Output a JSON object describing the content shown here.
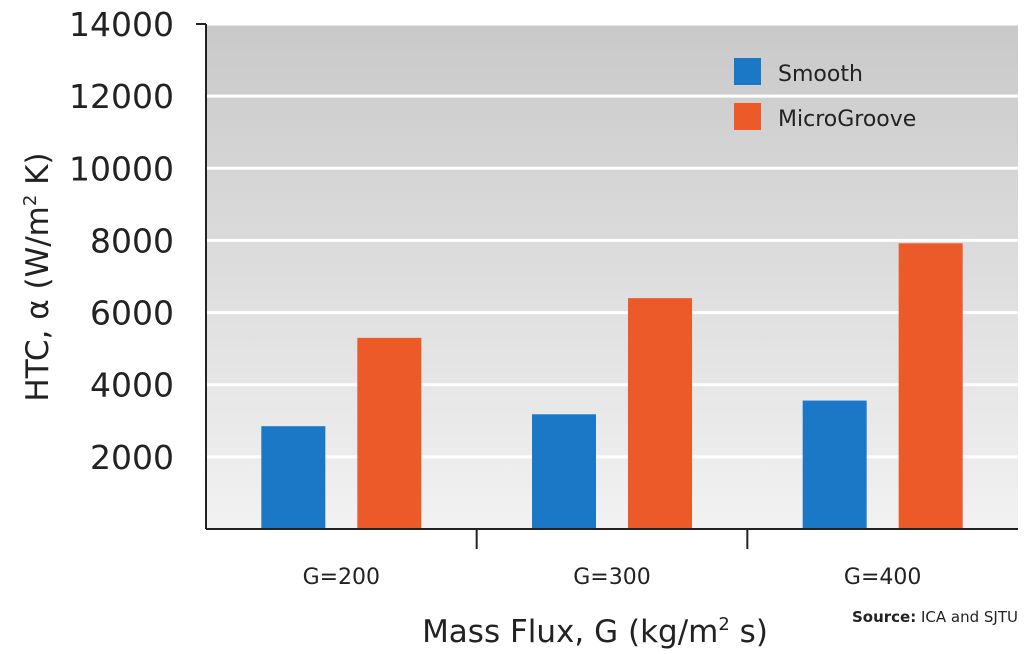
{
  "chart_data": {
    "type": "bar",
    "categories": [
      "G=200",
      "G=300",
      "G=400"
    ],
    "series": [
      {
        "name": "Smooth",
        "color": "#1a78c6",
        "values": [
          2850,
          3180,
          3560
        ]
      },
      {
        "name": "MicroGroove",
        "color": "#eb5a28",
        "values": [
          5300,
          6400,
          7920
        ]
      }
    ],
    "y_ticks": [
      "2000",
      "4000",
      "6000",
      "8000",
      "10000",
      "12000",
      "14000"
    ],
    "ylim": [
      0,
      14000
    ],
    "ylabel_main": "HTC, α  (W/m",
    "ylabel_sup": "2",
    "ylabel_tail": " K)",
    "xlabel_main": "Mass Flux, G (kg/m",
    "xlabel_sup": "2",
    "xlabel_tail": " s)",
    "grid": true,
    "legend_position": "top-right",
    "plot_background": [
      "#c9c9c9",
      "#f2f2f2"
    ]
  },
  "source": {
    "label": "Source:",
    "text": " ICA and SJTU"
  }
}
